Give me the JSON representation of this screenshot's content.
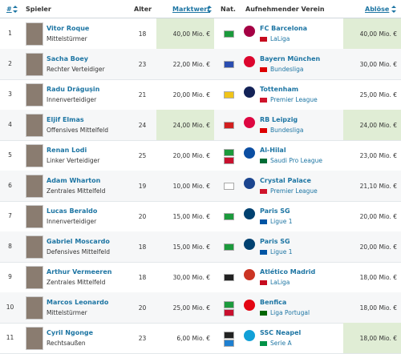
{
  "header": {
    "number": "#",
    "player": "Spieler",
    "age": "Alter",
    "market_value": "Marktwert",
    "nationality": "Nat.",
    "club": "Aufnehmender Verein",
    "fee": "Ablöse"
  },
  "table": {
    "rows": [
      {
        "number": 1,
        "player": "Vitor Roque",
        "position": "Mittelstürmer",
        "age": 18,
        "market_value": "40,00 Mio. €",
        "club": "FC Barcelona",
        "league": "LaLiga",
        "fee": "40,00 Mio. €"
      },
      {
        "number": 2,
        "player": "Sacha Boey",
        "position": "Rechter Verteidiger",
        "age": 23,
        "market_value": "22,00 Mio. €",
        "club": "Bayern München",
        "league": "Bundesliga",
        "fee": "30,00 Mio. €"
      },
      {
        "number": 3,
        "player": "Radu Drăgușin",
        "position": "Innenverteidiger",
        "age": 21,
        "market_value": "20,00 Mio. €",
        "club": "Tottenham",
        "league": "Premier League",
        "fee": "25,00 Mio. €"
      },
      {
        "number": 4,
        "player": "Eljif Elmas",
        "position": "Offensives Mittelfeld",
        "age": 24,
        "market_value": "24,00 Mio. €",
        "club": "RB Leipzig",
        "league": "Bundesliga",
        "fee": "24,00 Mio. €"
      },
      {
        "number": 5,
        "player": "Renan Lodi",
        "position": "Linker Verteidiger",
        "age": 25,
        "market_value": "20,00 Mio. €",
        "club": "Al-Hilal",
        "league": "Saudi Pro League",
        "fee": "23,00 Mio. €"
      },
      {
        "number": 6,
        "player": "Adam Wharton",
        "position": "Zentrales Mittelfeld",
        "age": 19,
        "market_value": "10,00 Mio. €",
        "club": "Crystal Palace",
        "league": "Premier League",
        "fee": "21,10 Mio. €"
      },
      {
        "number": 7,
        "player": "Lucas Beraldo",
        "position": "Innenverteidiger",
        "age": 20,
        "market_value": "15,00 Mio. €",
        "club": "Paris SG",
        "league": "Ligue 1",
        "fee": "20,00 Mio. €"
      },
      {
        "number": 8,
        "player": "Gabriel Moscardo",
        "position": "Defensives Mittelfeld",
        "age": 18,
        "market_value": "15,00 Mio. €",
        "club": "Paris SG",
        "league": "Ligue 1",
        "fee": "20,00 Mio. €"
      },
      {
        "number": 9,
        "player": "Arthur Vermeeren",
        "position": "Zentrales Mittelfeld",
        "age": 18,
        "market_value": "30,00 Mio. €",
        "club": "Atlético Madrid",
        "league": "LaLiga",
        "fee": "18,00 Mio. €"
      },
      {
        "number": 10,
        "player": "Marcos Leonardo",
        "position": "Mittelstürmer",
        "age": 20,
        "market_value": "25,00 Mio. €",
        "club": "Benfica",
        "league": "Liga Portugal",
        "fee": "18,00 Mio. €"
      },
      {
        "number": 11,
        "player": "Cyril Ngonge",
        "position": "Rechtsaußen",
        "age": 23,
        "market_value": "6,00 Mio. €",
        "club": "SSC Neapel",
        "league": "Serie A",
        "fee": "18,00 Mio. €"
      }
    ]
  }
}
